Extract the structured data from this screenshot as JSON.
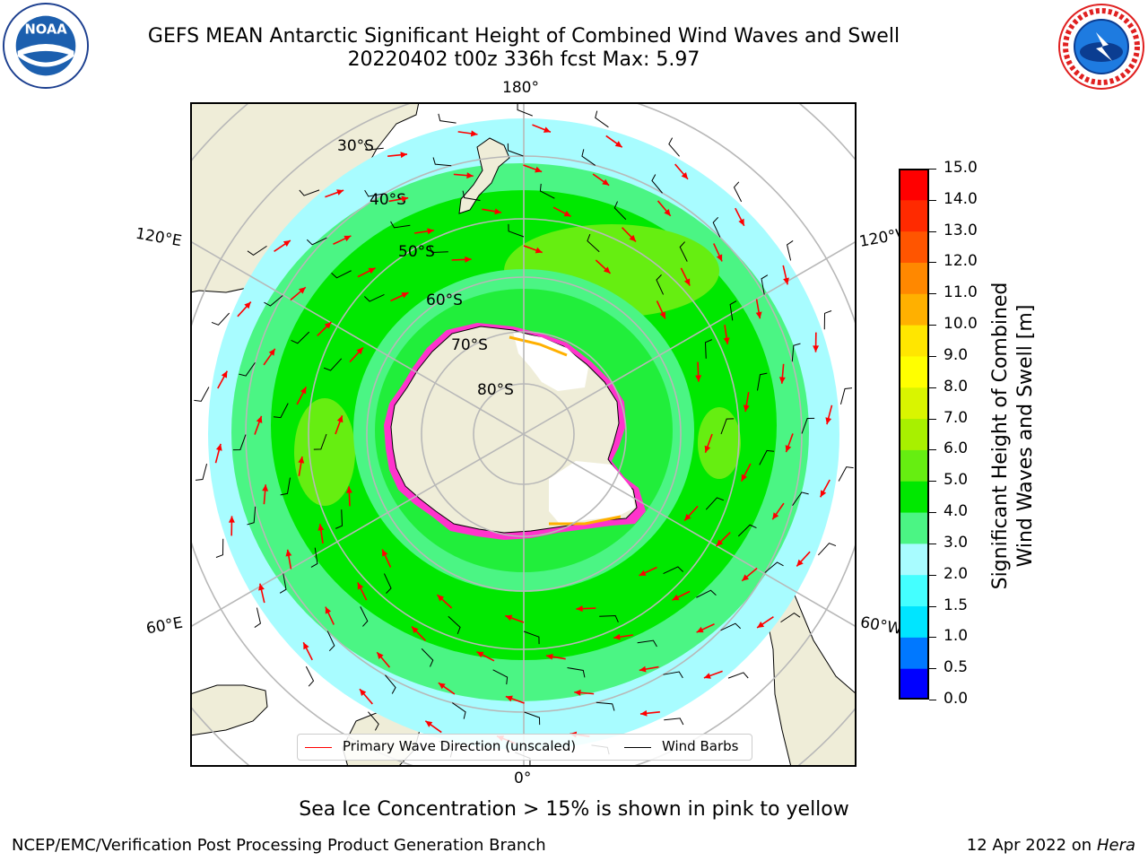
{
  "title_line1": "GEFS MEAN Antarctic Significant Height of Combined Wind Waves and Swell",
  "title_line2": "20220402 t00z 336h fcst   Max: 5.97",
  "logos": {
    "left": "NOAA",
    "right": "NATIONAL WEATHER SERVICE"
  },
  "map": {
    "projection": "south-polar-stereographic",
    "longitude_labels": [
      "180°",
      "120°E",
      "120°W",
      "60°E",
      "60°W",
      "0°"
    ],
    "latitude_labels": [
      "30°S",
      "40°S",
      "50°S",
      "60°S",
      "70°S",
      "80°S"
    ],
    "colors": {
      "land": "#efedd8",
      "ice": "#ffffff",
      "ocean_low": "#a8fcff",
      "ocean_mid": "#4bf584",
      "ocean_high": "#00e800",
      "ocean_peak": "#66ee11",
      "ice_edge": "#ff33cc",
      "arrows": "#ff0000",
      "barbs": "#000000",
      "grid": "#b8b8b8"
    }
  },
  "colorbar": {
    "label_line1": "Significant Height of Combined",
    "label_line2": "Wind Waves and Swell [m]",
    "ticks": [
      "15.0",
      "14.0",
      "13.0",
      "12.0",
      "11.0",
      "10.0",
      "9.0",
      "8.0",
      "7.0",
      "6.0",
      "5.0",
      "4.0",
      "3.0",
      "2.0",
      "1.5",
      "1.0",
      "0.5",
      "0.0"
    ],
    "colors_bottom_to_top": [
      "#0000ff",
      "#0078ff",
      "#00e5ff",
      "#44ffff",
      "#a8fcff",
      "#4bf584",
      "#00e800",
      "#66ee11",
      "#a8f000",
      "#d9f500",
      "#ffff00",
      "#ffe600",
      "#ffb000",
      "#ff8800",
      "#ff5500",
      "#ff2a00",
      "#ff0000"
    ]
  },
  "legend": {
    "wave_label": "Primary Wave Direction (unscaled)",
    "wind_label": "Wind Barbs"
  },
  "caption": "Sea Ice Concentration > 15% is shown in pink to yellow",
  "footer_left": "NCEP/EMC/Verification Post Processing Product Generation Branch",
  "footer_right_date": "12 Apr 2022 on",
  "footer_right_host": "Hera"
}
